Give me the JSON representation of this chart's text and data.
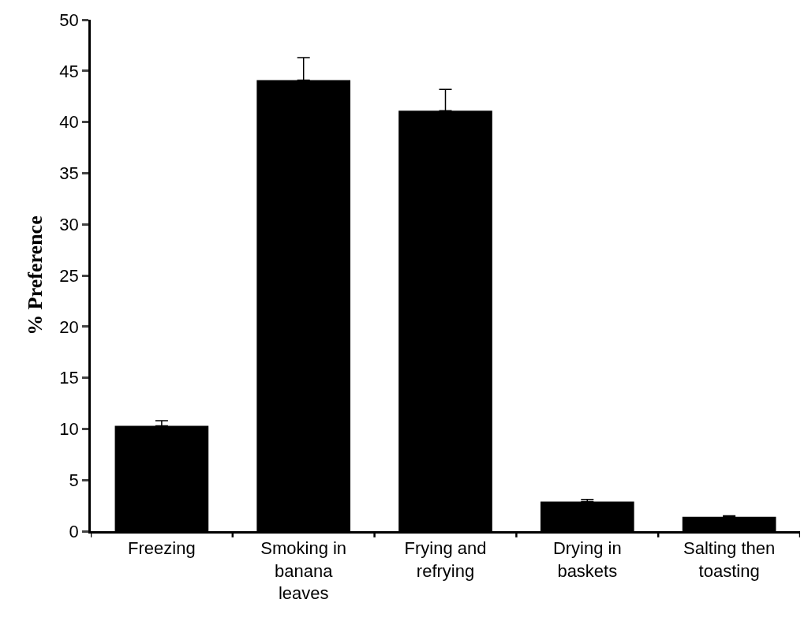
{
  "chart_data": {
    "type": "bar",
    "ylabel": "% Preference",
    "categories": [
      "Freezing",
      "Smoking in banana leaves",
      "Frying and refrying",
      "Drying in baskets",
      "Salting then toasting"
    ],
    "values": [
      10.3,
      44.1,
      41.1,
      2.9,
      1.4
    ],
    "errors": [
      [
        10.3,
        10.8
      ],
      [
        44.1,
        46.3
      ],
      [
        41.1,
        43.2
      ],
      [
        2.9,
        3.1
      ],
      [
        1.4,
        1.5
      ]
    ],
    "color": "#000000",
    "ylim": [
      0,
      50
    ],
    "yticks": [
      0,
      5,
      10,
      15,
      20,
      25,
      30,
      35,
      40,
      45,
      50
    ]
  }
}
